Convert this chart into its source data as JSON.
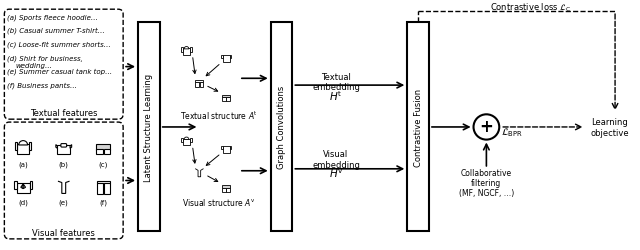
{
  "bg_color": "#ffffff",
  "text_color": "#000000",
  "textual_items": [
    "(a) Sports fleece hoodie…",
    "(b) Casual summer T-shirt…",
    "(c) Loose-fit summer shorts…",
    "(d) Shirt for business,\n       wedding…",
    "(e) Summer casual tank top…",
    "(f) Business pants…"
  ],
  "textual_label": "Textual features",
  "visual_label": "Visual features",
  "latent_label": "Latent Structure Learning",
  "graph_label": "Graph Convolutions",
  "fusion_label": "Contrastive Fusion",
  "textual_struct_label": "Textual structure $A^\\mathrm{t}$",
  "visual_struct_label": "Visual structure $A^\\mathrm{v}$",
  "textual_embed_label": "Textual\nembedding",
  "textual_embed_h": "$H^\\mathrm{t}$",
  "visual_embed_label": "Visual\nembedding",
  "visual_embed_h": "$H^\\mathrm{v}$",
  "contrastive_loss_label": "Contrastive loss $\\mathcal{L}_\\mathrm{C}$",
  "collab_label": "Collaborative\nfiltering\n(MF, NGCF, …)",
  "bpr_label": "$\\mathcal{L}_\\mathrm{BPR}$",
  "learning_label": "Learning\nobjective"
}
